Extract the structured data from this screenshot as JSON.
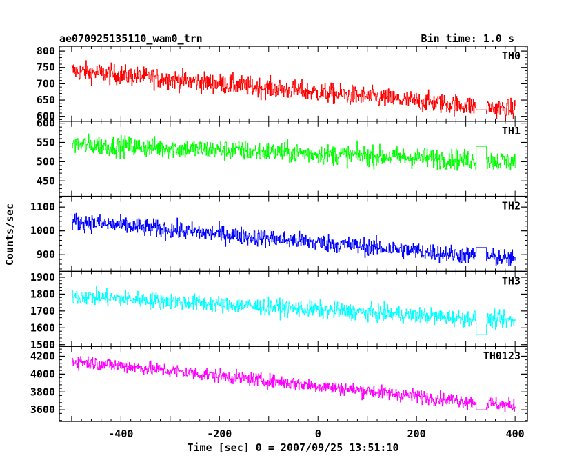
{
  "chart_data": {
    "type": "line",
    "title": "ae070925135110_wam0_trn",
    "subtitle": "Bin time: 1.0 s",
    "xlabel": "Time [sec] 0 = 2007/09/25 13:51:10",
    "ylabel": "Counts/sec",
    "xlim": [
      -525,
      425
    ],
    "xticks": [
      -400,
      -200,
      0,
      200,
      400
    ],
    "x_range": [
      -500,
      400
    ],
    "gap": [
      320,
      342
    ],
    "bin_time": 1.0,
    "panels": [
      {
        "name": "TH0",
        "color": "#ff0000",
        "ylim": [
          585,
          815
        ],
        "yticks": [
          600,
          650,
          700,
          750,
          800
        ],
        "start": 740,
        "end": 620,
        "noise": 28,
        "gap_level": 620
      },
      {
        "name": "TH1",
        "color": "#00ff00",
        "ylim": [
          410,
          605
        ],
        "yticks": [
          450,
          500,
          550,
          600
        ],
        "start": 545,
        "end": 500,
        "noise": 24,
        "gap_level": 540
      },
      {
        "name": "TH2",
        "color": "#0000ff",
        "ylim": [
          830,
          1145
        ],
        "yticks": [
          900,
          1000,
          1100
        ],
        "start": 1040,
        "end": 880,
        "noise": 34,
        "gap_level": 930
      },
      {
        "name": "TH3",
        "color": "#00ffff",
        "ylim": [
          1490,
          1935
        ],
        "yticks": [
          1500,
          1600,
          1700,
          1800,
          1900
        ],
        "start": 1790,
        "end": 1640,
        "noise": 45,
        "gap_level": 1560
      },
      {
        "name": "TH0123",
        "color": "#ff00ff",
        "ylim": [
          3470,
          4310
        ],
        "yticks": [
          3600,
          3800,
          4000,
          4200
        ],
        "start": 4150,
        "end": 3640,
        "noise": 70,
        "gap_level": 3600
      }
    ]
  }
}
